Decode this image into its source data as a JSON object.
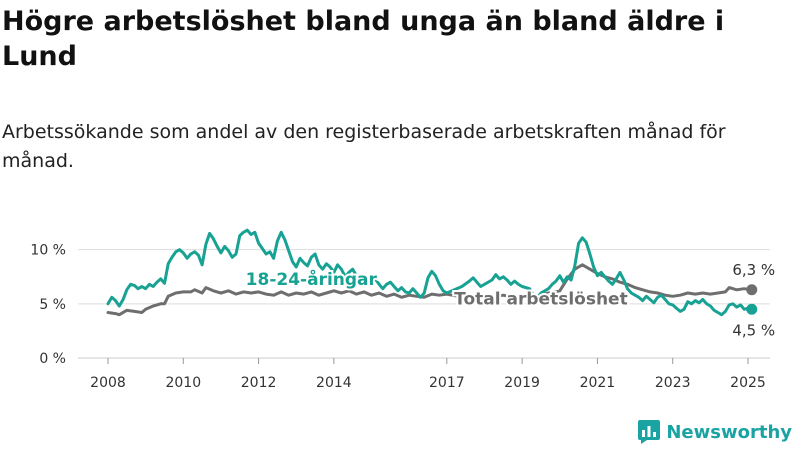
{
  "title": "Högre arbetslöshet bland unga än bland äldre i Lund",
  "subtitle": "Arbetssökande som andel av den registerbaserade arbetskraften månad för månad.",
  "brand": "Newsworthy",
  "colors": {
    "youth": "#17a294",
    "total": "#6e6e6e",
    "grid": "#dddddd",
    "brand": "#19a3a3"
  },
  "chart_data": {
    "type": "line",
    "ylim": [
      0,
      12
    ],
    "xlim": [
      2008,
      2025.5
    ],
    "y_ticks": [
      {
        "value": 0,
        "label": "0 %"
      },
      {
        "value": 5,
        "label": "5 %"
      },
      {
        "value": 10,
        "label": "10 %"
      }
    ],
    "x_ticks": [
      {
        "value": 2008,
        "label": "2008"
      },
      {
        "value": 2010,
        "label": "2010"
      },
      {
        "value": 2012,
        "label": "2012"
      },
      {
        "value": 2014,
        "label": "2014"
      },
      {
        "value": 2017,
        "label": "2017"
      },
      {
        "value": 2019,
        "label": "2019"
      },
      {
        "value": 2021,
        "label": "2021"
      },
      {
        "value": 2023,
        "label": "2023"
      },
      {
        "value": 2025,
        "label": "2025"
      }
    ],
    "series": [
      {
        "name": "18-24-åringar",
        "color": "#17a294",
        "end_label": "4,5 %",
        "points": [
          [
            2008.0,
            5.0
          ],
          [
            2008.1,
            5.6
          ],
          [
            2008.2,
            5.3
          ],
          [
            2008.3,
            4.8
          ],
          [
            2008.4,
            5.4
          ],
          [
            2008.5,
            6.3
          ],
          [
            2008.6,
            6.8
          ],
          [
            2008.7,
            6.7
          ],
          [
            2008.8,
            6.4
          ],
          [
            2008.9,
            6.6
          ],
          [
            2009.0,
            6.4
          ],
          [
            2009.1,
            6.8
          ],
          [
            2009.2,
            6.6
          ],
          [
            2009.3,
            7.0
          ],
          [
            2009.4,
            7.3
          ],
          [
            2009.5,
            6.9
          ],
          [
            2009.6,
            8.7
          ],
          [
            2009.7,
            9.3
          ],
          [
            2009.8,
            9.8
          ],
          [
            2009.9,
            10.0
          ],
          [
            2010.0,
            9.7
          ],
          [
            2010.1,
            9.2
          ],
          [
            2010.2,
            9.6
          ],
          [
            2010.3,
            9.8
          ],
          [
            2010.4,
            9.5
          ],
          [
            2010.5,
            8.6
          ],
          [
            2010.6,
            10.5
          ],
          [
            2010.7,
            11.5
          ],
          [
            2010.8,
            11.0
          ],
          [
            2010.9,
            10.3
          ],
          [
            2011.0,
            9.7
          ],
          [
            2011.1,
            10.3
          ],
          [
            2011.2,
            9.9
          ],
          [
            2011.3,
            9.3
          ],
          [
            2011.4,
            9.6
          ],
          [
            2011.5,
            11.3
          ],
          [
            2011.6,
            11.6
          ],
          [
            2011.7,
            11.8
          ],
          [
            2011.8,
            11.4
          ],
          [
            2011.9,
            11.6
          ],
          [
            2012.0,
            10.6
          ],
          [
            2012.1,
            10.1
          ],
          [
            2012.2,
            9.6
          ],
          [
            2012.3,
            9.8
          ],
          [
            2012.4,
            9.2
          ],
          [
            2012.5,
            10.8
          ],
          [
            2012.6,
            11.6
          ],
          [
            2012.7,
            10.9
          ],
          [
            2012.8,
            9.9
          ],
          [
            2012.9,
            8.9
          ],
          [
            2013.0,
            8.4
          ],
          [
            2013.1,
            9.2
          ],
          [
            2013.2,
            8.8
          ],
          [
            2013.3,
            8.5
          ],
          [
            2013.4,
            9.3
          ],
          [
            2013.5,
            9.6
          ],
          [
            2013.6,
            8.6
          ],
          [
            2013.7,
            8.2
          ],
          [
            2013.8,
            8.7
          ],
          [
            2013.9,
            8.4
          ],
          [
            2014.0,
            7.9
          ],
          [
            2014.1,
            8.6
          ],
          [
            2014.2,
            8.2
          ],
          [
            2014.3,
            7.5
          ],
          [
            2014.4,
            7.9
          ],
          [
            2014.5,
            8.2
          ],
          [
            2014.6,
            7.6
          ],
          [
            2014.7,
            7.2
          ],
          [
            2014.8,
            7.6
          ],
          [
            2014.9,
            7.1
          ],
          [
            2015.0,
            6.9
          ],
          [
            2015.1,
            7.3
          ],
          [
            2015.2,
            6.8
          ],
          [
            2015.3,
            6.4
          ],
          [
            2015.4,
            6.8
          ],
          [
            2015.5,
            7.0
          ],
          [
            2015.6,
            6.6
          ],
          [
            2015.7,
            6.2
          ],
          [
            2015.8,
            6.5
          ],
          [
            2015.9,
            6.1
          ],
          [
            2016.0,
            6.0
          ],
          [
            2016.1,
            6.4
          ],
          [
            2016.2,
            6.0
          ],
          [
            2016.3,
            5.6
          ],
          [
            2016.4,
            6.0
          ],
          [
            2016.5,
            7.4
          ],
          [
            2016.6,
            8.0
          ],
          [
            2016.7,
            7.6
          ],
          [
            2016.8,
            6.8
          ],
          [
            2016.9,
            6.2
          ],
          [
            2017.0,
            6.0
          ],
          [
            2017.2,
            6.3
          ],
          [
            2017.4,
            6.6
          ],
          [
            2017.6,
            7.1
          ],
          [
            2017.7,
            7.4
          ],
          [
            2017.8,
            7.0
          ],
          [
            2017.9,
            6.6
          ],
          [
            2018.0,
            6.8
          ],
          [
            2018.2,
            7.2
          ],
          [
            2018.3,
            7.7
          ],
          [
            2018.4,
            7.3
          ],
          [
            2018.5,
            7.5
          ],
          [
            2018.6,
            7.2
          ],
          [
            2018.7,
            6.8
          ],
          [
            2018.8,
            7.1
          ],
          [
            2018.9,
            6.8
          ],
          [
            2019.0,
            6.6
          ],
          [
            2019.2,
            6.4
          ],
          [
            2019.3,
            5.8
          ],
          [
            2019.4,
            5.5
          ],
          [
            2019.5,
            6.0
          ],
          [
            2019.7,
            6.4
          ],
          [
            2019.8,
            6.8
          ],
          [
            2019.9,
            7.1
          ],
          [
            2020.0,
            7.6
          ],
          [
            2020.1,
            7.0
          ],
          [
            2020.2,
            7.5
          ],
          [
            2020.3,
            7.2
          ],
          [
            2020.4,
            8.5
          ],
          [
            2020.5,
            10.6
          ],
          [
            2020.6,
            11.1
          ],
          [
            2020.7,
            10.7
          ],
          [
            2020.8,
            9.6
          ],
          [
            2020.9,
            8.4
          ],
          [
            2021.0,
            7.6
          ],
          [
            2021.1,
            7.9
          ],
          [
            2021.2,
            7.5
          ],
          [
            2021.3,
            7.1
          ],
          [
            2021.4,
            6.8
          ],
          [
            2021.5,
            7.3
          ],
          [
            2021.6,
            7.9
          ],
          [
            2021.7,
            7.2
          ],
          [
            2021.8,
            6.4
          ],
          [
            2021.9,
            6.0
          ],
          [
            2022.0,
            5.8
          ],
          [
            2022.1,
            5.6
          ],
          [
            2022.2,
            5.3
          ],
          [
            2022.3,
            5.7
          ],
          [
            2022.4,
            5.4
          ],
          [
            2022.5,
            5.1
          ],
          [
            2022.6,
            5.6
          ],
          [
            2022.7,
            5.8
          ],
          [
            2022.8,
            5.4
          ],
          [
            2022.9,
            5.0
          ],
          [
            2023.0,
            4.9
          ],
          [
            2023.1,
            4.6
          ],
          [
            2023.2,
            4.3
          ],
          [
            2023.3,
            4.5
          ],
          [
            2023.4,
            5.2
          ],
          [
            2023.5,
            5.0
          ],
          [
            2023.6,
            5.3
          ],
          [
            2023.7,
            5.1
          ],
          [
            2023.8,
            5.4
          ],
          [
            2023.9,
            5.0
          ],
          [
            2024.0,
            4.8
          ],
          [
            2024.1,
            4.4
          ],
          [
            2024.2,
            4.2
          ],
          [
            2024.3,
            4.0
          ],
          [
            2024.4,
            4.3
          ],
          [
            2024.5,
            4.9
          ],
          [
            2024.6,
            5.0
          ],
          [
            2024.7,
            4.7
          ],
          [
            2024.8,
            4.9
          ],
          [
            2024.9,
            4.5
          ],
          [
            2025.0,
            4.6
          ],
          [
            2025.1,
            4.5
          ]
        ]
      },
      {
        "name": "Total arbetslöshet",
        "color": "#6e6e6e",
        "end_label": "6,3 %",
        "points": [
          [
            2008.0,
            4.2
          ],
          [
            2008.2,
            4.1
          ],
          [
            2008.3,
            4.0
          ],
          [
            2008.5,
            4.4
          ],
          [
            2008.7,
            4.3
          ],
          [
            2008.9,
            4.2
          ],
          [
            2009.0,
            4.5
          ],
          [
            2009.2,
            4.8
          ],
          [
            2009.4,
            5.0
          ],
          [
            2009.5,
            5.0
          ],
          [
            2009.6,
            5.7
          ],
          [
            2009.8,
            6.0
          ],
          [
            2010.0,
            6.1
          ],
          [
            2010.2,
            6.1
          ],
          [
            2010.3,
            6.3
          ],
          [
            2010.5,
            6.0
          ],
          [
            2010.6,
            6.5
          ],
          [
            2010.8,
            6.2
          ],
          [
            2011.0,
            6.0
          ],
          [
            2011.2,
            6.2
          ],
          [
            2011.4,
            5.9
          ],
          [
            2011.6,
            6.1
          ],
          [
            2011.8,
            6.0
          ],
          [
            2012.0,
            6.1
          ],
          [
            2012.2,
            5.9
          ],
          [
            2012.4,
            5.8
          ],
          [
            2012.6,
            6.1
          ],
          [
            2012.8,
            5.8
          ],
          [
            2013.0,
            6.0
          ],
          [
            2013.2,
            5.9
          ],
          [
            2013.4,
            6.1
          ],
          [
            2013.6,
            5.8
          ],
          [
            2013.8,
            6.0
          ],
          [
            2014.0,
            6.2
          ],
          [
            2014.2,
            6.0
          ],
          [
            2014.4,
            6.2
          ],
          [
            2014.6,
            5.9
          ],
          [
            2014.8,
            6.1
          ],
          [
            2015.0,
            5.8
          ],
          [
            2015.2,
            6.0
          ],
          [
            2015.4,
            5.7
          ],
          [
            2015.6,
            5.9
          ],
          [
            2015.8,
            5.6
          ],
          [
            2016.0,
            5.8
          ],
          [
            2016.2,
            5.7
          ],
          [
            2016.4,
            5.6
          ],
          [
            2016.6,
            5.9
          ],
          [
            2016.8,
            5.8
          ],
          [
            2017.0,
            5.9
          ],
          [
            2017.3,
            5.7
          ],
          [
            2017.6,
            5.8
          ],
          [
            2017.9,
            5.6
          ],
          [
            2018.2,
            5.6
          ],
          [
            2018.5,
            5.8
          ],
          [
            2018.8,
            5.6
          ],
          [
            2019.1,
            5.7
          ],
          [
            2019.4,
            5.7
          ],
          [
            2019.7,
            6.0
          ],
          [
            2020.0,
            6.2
          ],
          [
            2020.2,
            7.3
          ],
          [
            2020.4,
            8.2
          ],
          [
            2020.6,
            8.6
          ],
          [
            2020.8,
            8.2
          ],
          [
            2021.0,
            7.8
          ],
          [
            2021.2,
            7.5
          ],
          [
            2021.4,
            7.3
          ],
          [
            2021.6,
            7.0
          ],
          [
            2021.8,
            6.8
          ],
          [
            2022.0,
            6.5
          ],
          [
            2022.2,
            6.3
          ],
          [
            2022.4,
            6.1
          ],
          [
            2022.6,
            6.0
          ],
          [
            2022.8,
            5.8
          ],
          [
            2023.0,
            5.7
          ],
          [
            2023.2,
            5.8
          ],
          [
            2023.4,
            6.0
          ],
          [
            2023.6,
            5.9
          ],
          [
            2023.8,
            6.0
          ],
          [
            2024.0,
            5.9
          ],
          [
            2024.2,
            6.0
          ],
          [
            2024.4,
            6.1
          ],
          [
            2024.5,
            6.5
          ],
          [
            2024.7,
            6.3
          ],
          [
            2024.9,
            6.4
          ],
          [
            2025.1,
            6.3
          ]
        ]
      }
    ]
  }
}
